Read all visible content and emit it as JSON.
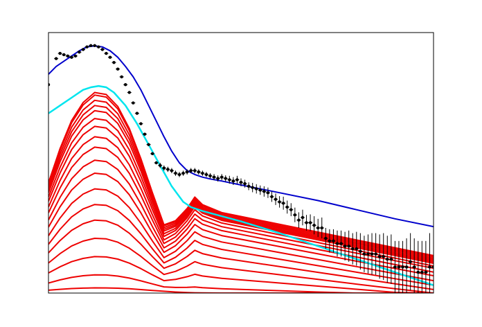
{
  "chart_data": {
    "type": "line",
    "title": "",
    "xlabel": "",
    "ylabel": "",
    "axes_ticks_printed": false,
    "xlim": [
      0,
      1
    ],
    "ylim": [
      0,
      1
    ],
    "grid": false,
    "legend": "none",
    "colors": {
      "data": "#000000",
      "fit": "#0000cc",
      "envelope": "#00e5ee",
      "components": "#ee0000",
      "frame": "#000000"
    },
    "series": [
      {
        "role": "fit",
        "x": [
          0.0,
          0.02,
          0.05,
          0.08,
          0.1,
          0.12,
          0.14,
          0.16,
          0.18,
          0.2,
          0.22,
          0.24,
          0.26,
          0.28,
          0.3,
          0.32,
          0.34,
          0.36,
          0.38,
          0.4,
          0.42,
          0.45,
          0.5,
          0.6,
          0.7,
          0.8,
          0.9,
          1.0
        ],
        "y": [
          0.84,
          0.87,
          0.9,
          0.93,
          0.945,
          0.949,
          0.945,
          0.93,
          0.905,
          0.87,
          0.83,
          0.78,
          0.72,
          0.66,
          0.6,
          0.545,
          0.5,
          0.47,
          0.455,
          0.445,
          0.438,
          0.43,
          0.415,
          0.385,
          0.355,
          0.32,
          0.285,
          0.255
        ]
      },
      {
        "role": "envelope",
        "x": [
          0.0,
          0.03,
          0.06,
          0.09,
          0.11,
          0.13,
          0.15,
          0.17,
          0.2,
          0.23,
          0.26,
          0.29,
          0.32,
          0.35,
          0.37,
          0.4,
          0.45,
          0.5,
          0.6,
          0.7,
          0.8,
          0.9,
          1.0
        ],
        "y": [
          0.69,
          0.72,
          0.75,
          0.78,
          0.79,
          0.795,
          0.79,
          0.77,
          0.72,
          0.65,
          0.57,
          0.49,
          0.41,
          0.35,
          0.33,
          0.315,
          0.295,
          0.275,
          0.23,
          0.18,
          0.13,
          0.08,
          0.03
        ]
      },
      {
        "role": "components",
        "x": [
          0.0,
          0.03,
          0.06,
          0.09,
          0.12,
          0.15,
          0.18,
          0.21,
          0.24,
          0.27,
          0.3,
          0.33,
          0.36,
          0.38,
          0.4,
          0.45,
          0.5,
          0.6,
          0.7,
          0.8,
          0.9,
          1.0
        ],
        "shape": [
          0.55,
          0.72,
          0.86,
          0.95,
          1.0,
          0.99,
          0.93,
          0.82,
          0.67,
          0.5,
          0.34,
          0.2,
          0.1,
          0.05,
          0.02,
          0.0,
          0.0,
          0.0,
          0.0,
          0.0,
          0.0,
          0.0
        ],
        "curves": [
          {
            "amp": 0.77,
            "base": 0.33,
            "slope": -0.3
          },
          {
            "amp": 0.76,
            "base": 0.325,
            "slope": -0.3
          },
          {
            "amp": 0.74,
            "base": 0.32,
            "slope": -0.3
          },
          {
            "amp": 0.72,
            "base": 0.315,
            "slope": -0.3
          },
          {
            "amp": 0.7,
            "base": 0.31,
            "slope": -0.3
          },
          {
            "amp": 0.67,
            "base": 0.305,
            "slope": -0.3
          },
          {
            "amp": 0.64,
            "base": 0.3,
            "slope": -0.3
          },
          {
            "amp": 0.6,
            "base": 0.29,
            "slope": -0.3
          },
          {
            "amp": 0.56,
            "base": 0.275,
            "slope": -0.29
          },
          {
            "amp": 0.51,
            "base": 0.26,
            "slope": -0.29
          },
          {
            "amp": 0.46,
            "base": 0.24,
            "slope": -0.28
          },
          {
            "amp": 0.4,
            "base": 0.215,
            "slope": -0.27
          },
          {
            "amp": 0.34,
            "base": 0.185,
            "slope": -0.25
          },
          {
            "amp": 0.28,
            "base": 0.15,
            "slope": -0.22
          },
          {
            "amp": 0.21,
            "base": 0.11,
            "slope": -0.18
          },
          {
            "amp": 0.14,
            "base": 0.065,
            "slope": -0.12
          },
          {
            "amp": 0.07,
            "base": 0.02,
            "slope": -0.05
          },
          {
            "amp": 0.02,
            "base": 0.0,
            "slope": 0.0
          }
        ]
      },
      {
        "role": "data",
        "x": [
          0.0,
          0.02,
          0.03,
          0.04,
          0.05,
          0.06,
          0.07,
          0.08,
          0.09,
          0.1,
          0.11,
          0.12,
          0.13,
          0.14,
          0.15,
          0.16,
          0.17,
          0.18,
          0.19,
          0.2,
          0.21,
          0.22,
          0.23,
          0.24,
          0.25,
          0.26,
          0.27,
          0.28,
          0.29,
          0.3,
          0.31,
          0.32,
          0.33,
          0.34,
          0.35,
          0.36,
          0.37,
          0.38,
          0.39,
          0.4,
          0.41,
          0.42,
          0.43,
          0.44,
          0.45,
          0.46,
          0.47,
          0.48,
          0.49,
          0.5,
          0.51,
          0.52,
          0.53,
          0.54,
          0.55,
          0.56,
          0.57,
          0.58,
          0.59,
          0.6,
          0.61,
          0.62,
          0.63,
          0.64,
          0.65,
          0.66,
          0.67,
          0.68,
          0.69,
          0.7,
          0.71,
          0.72,
          0.73,
          0.74,
          0.75,
          0.76,
          0.77,
          0.78,
          0.79,
          0.8,
          0.81,
          0.82,
          0.83,
          0.84,
          0.85,
          0.86,
          0.87,
          0.88,
          0.89,
          0.9,
          0.91,
          0.92,
          0.93,
          0.94,
          0.95,
          0.96,
          0.97,
          0.98,
          0.99,
          1.0
        ],
        "y": [
          0.8,
          0.9,
          0.92,
          0.915,
          0.91,
          0.905,
          0.91,
          0.925,
          0.935,
          0.945,
          0.95,
          0.95,
          0.945,
          0.935,
          0.92,
          0.905,
          0.885,
          0.86,
          0.83,
          0.8,
          0.77,
          0.73,
          0.69,
          0.65,
          0.61,
          0.57,
          0.535,
          0.5,
          0.49,
          0.48,
          0.475,
          0.47,
          0.46,
          0.455,
          0.46,
          0.465,
          0.47,
          0.47,
          0.465,
          0.46,
          0.455,
          0.45,
          0.445,
          0.44,
          0.445,
          0.44,
          0.435,
          0.43,
          0.435,
          0.425,
          0.42,
          0.41,
          0.405,
          0.4,
          0.395,
          0.39,
          0.385,
          0.37,
          0.36,
          0.35,
          0.345,
          0.33,
          0.32,
          0.3,
          0.28,
          0.29,
          0.27,
          0.27,
          0.26,
          0.25,
          0.25,
          0.21,
          0.2,
          0.2,
          0.19,
          0.19,
          0.18,
          0.18,
          0.17,
          0.17,
          0.16,
          0.15,
          0.15,
          0.15,
          0.15,
          0.14,
          0.14,
          0.13,
          0.13,
          0.1,
          0.1,
          0.1,
          0.1,
          0.12,
          0.1,
          0.08,
          0.08,
          0.08,
          0.1,
          0.1
        ],
        "err": [
          0.0,
          0.005,
          0.005,
          0.005,
          0.005,
          0.005,
          0.005,
          0.005,
          0.005,
          0.005,
          0.005,
          0.005,
          0.005,
          0.005,
          0.005,
          0.005,
          0.005,
          0.005,
          0.005,
          0.005,
          0.005,
          0.005,
          0.005,
          0.005,
          0.005,
          0.005,
          0.005,
          0.005,
          0.01,
          0.01,
          0.01,
          0.01,
          0.01,
          0.01,
          0.01,
          0.01,
          0.01,
          0.01,
          0.01,
          0.01,
          0.01,
          0.01,
          0.012,
          0.012,
          0.012,
          0.012,
          0.015,
          0.015,
          0.015,
          0.015,
          0.015,
          0.015,
          0.018,
          0.018,
          0.018,
          0.02,
          0.02,
          0.02,
          0.022,
          0.022,
          0.025,
          0.025,
          0.025,
          0.028,
          0.03,
          0.03,
          0.03,
          0.032,
          0.035,
          0.035,
          0.04,
          0.04,
          0.045,
          0.045,
          0.05,
          0.05,
          0.055,
          0.06,
          0.06,
          0.065,
          0.07,
          0.07,
          0.075,
          0.08,
          0.08,
          0.085,
          0.09,
          0.09,
          0.095,
          0.1,
          0.1,
          0.1,
          0.11,
          0.11,
          0.11,
          0.12,
          0.12,
          0.12,
          0.13,
          0.13
        ]
      }
    ]
  }
}
